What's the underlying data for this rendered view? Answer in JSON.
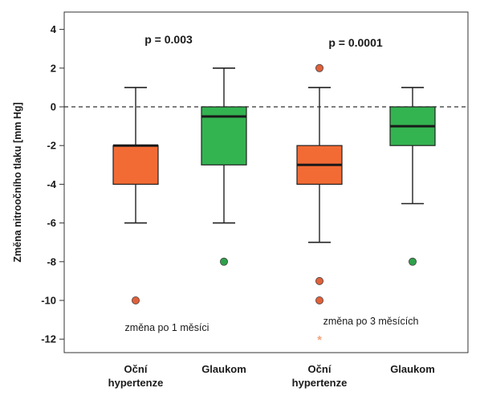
{
  "chart_data": {
    "type": "box",
    "ylabel": "Změna nitroočního tlaku [mm Hg]",
    "ylim": [
      -13,
      4.5
    ],
    "yticks": [
      4,
      2,
      0,
      -2,
      -4,
      -6,
      -8,
      -10,
      -12
    ],
    "reference_line": 0,
    "colors": {
      "oh": "#f26b35",
      "glaukom": "#34b351",
      "outlier_oh": "#e0603a",
      "outlier_glaukom": "#2fa14a",
      "extreme_oh": "#f5a37a"
    },
    "categories": [
      {
        "line1": "Oční",
        "line2": "hypertenze"
      },
      {
        "line1": "Glaukom",
        "line2": ""
      },
      {
        "line1": "Oční",
        "line2": "hypertenze"
      },
      {
        "line1": "Glaukom",
        "line2": ""
      }
    ],
    "boxes": [
      {
        "group": "oh",
        "whisker_low": -6,
        "q1": -4,
        "median": -2,
        "q3": -2,
        "whisker_high": 1,
        "outliers": [
          -10
        ],
        "extremes": []
      },
      {
        "group": "glaukom",
        "whisker_low": -6,
        "q1": -3,
        "median": -0.5,
        "q3": 0,
        "whisker_high": 2,
        "outliers": [
          -8
        ],
        "extremes": []
      },
      {
        "group": "oh",
        "whisker_low": -7,
        "q1": -4,
        "median": -3,
        "q3": -2,
        "whisker_high": 1,
        "outliers": [
          2,
          -9,
          -10
        ],
        "extremes": [
          -12
        ]
      },
      {
        "group": "glaukom",
        "whisker_low": -5,
        "q1": -2,
        "median": -1,
        "q3": 0,
        "whisker_high": 1,
        "outliers": [
          -8
        ],
        "extremes": []
      }
    ],
    "annotations": {
      "p1": "p = 0.003",
      "p2": "p = 0.0001",
      "period1": "změna po 1 měsíci",
      "period2": "změna po 3 měsících"
    }
  }
}
